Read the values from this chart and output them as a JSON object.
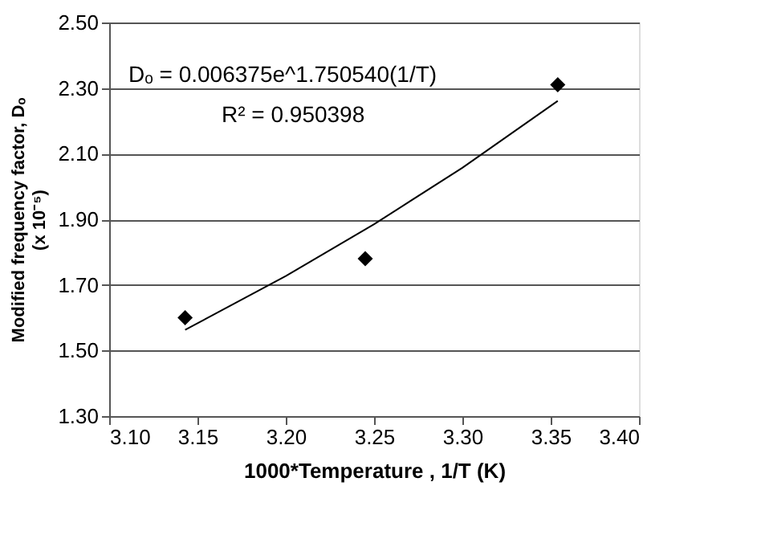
{
  "chart_data": {
    "type": "scatter",
    "xlabel": "1000*Temperature , 1/T (K)",
    "ylabel": [
      "Modified frequency factor, Dₒ",
      "(x 10⁻⁵)"
    ],
    "xlim": [
      3.1,
      3.4
    ],
    "xticks": [
      {
        "value": 3.1,
        "label": "3.10"
      },
      3.15,
      {
        "value": 3.2,
        "label": "3.20"
      },
      3.25,
      {
        "value": 3.3,
        "label": "3.30"
      },
      3.35,
      {
        "value": 3.4,
        "label": "3.40"
      }
    ],
    "ylim": [
      1.3,
      2.5
    ],
    "yticks": [
      {
        "value": 1.3,
        "label": "1.30"
      },
      {
        "value": 1.5,
        "label": "1.50"
      },
      {
        "value": 1.7,
        "label": "1.70"
      },
      {
        "value": 1.9,
        "label": "1.90"
      },
      {
        "value": 2.1,
        "label": "2.10"
      },
      {
        "value": 2.3,
        "label": "2.30"
      },
      {
        "value": 2.5,
        "label": "2.50"
      }
    ],
    "grid": "y",
    "marker": "diamond",
    "annotations": [
      "Dₒ = 0.006375e^1.750540(1/T)",
      "R² = 0.950398"
    ],
    "series": [
      {
        "color": "#000000",
        "x": [
          3.143,
          3.245,
          3.354
        ],
        "values": [
          1.6,
          1.78,
          2.31
        ]
      },
      {
        "type": "line",
        "color": "#000000",
        "line_style": "solid",
        "marker": "none",
        "x": [
          3.143,
          3.2,
          3.25,
          3.3,
          3.354
        ],
        "values": [
          1.563,
          1.727,
          1.885,
          2.057,
          2.261
        ]
      }
    ]
  }
}
